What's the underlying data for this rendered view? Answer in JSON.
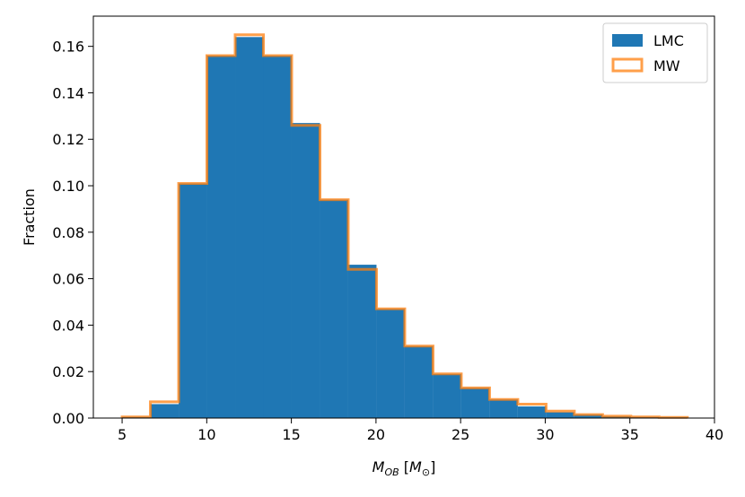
{
  "chart_data": {
    "type": "histogram",
    "xlabel": "M_OB [M_⊙]",
    "xlabel_parts": {
      "main": "M",
      "sub": "OB",
      "bracket_open": " [",
      "unit_main": "M",
      "unit_sub": "⊙",
      "bracket_close": "]"
    },
    "ylabel": "Fraction",
    "xlim": [
      3.3,
      40
    ],
    "ylim": [
      0,
      0.173
    ],
    "xticks": [
      5,
      10,
      15,
      20,
      25,
      30,
      35,
      40
    ],
    "yticks": [
      0.0,
      0.02,
      0.04,
      0.06,
      0.08,
      0.1,
      0.12,
      0.14,
      0.16
    ],
    "ytick_labels": [
      "0.00",
      "0.02",
      "0.04",
      "0.06",
      "0.08",
      "0.10",
      "0.12",
      "0.14",
      "0.16"
    ],
    "legend_position": "top-right",
    "bin_edges": [
      5.0,
      6.67,
      8.34,
      10.01,
      11.68,
      13.35,
      15.02,
      16.69,
      18.36,
      20.03,
      21.7,
      23.37,
      25.04,
      26.71,
      28.38,
      30.05,
      31.72,
      33.39,
      35.06,
      36.73,
      38.4
    ],
    "series": [
      {
        "name": "LMC",
        "style": "filled",
        "color": "#1f77b4",
        "values": [
          0.0005,
          0.006,
          0.101,
          0.156,
          0.164,
          0.156,
          0.127,
          0.094,
          0.066,
          0.047,
          0.031,
          0.019,
          0.013,
          0.008,
          0.005,
          0.0025,
          0.0015,
          0.0008,
          0.0005,
          0.0003
        ]
      },
      {
        "name": "MW",
        "style": "step-outline",
        "color": "#ff7f0e",
        "values": [
          0.0005,
          0.007,
          0.101,
          0.156,
          0.165,
          0.156,
          0.126,
          0.094,
          0.064,
          0.047,
          0.031,
          0.019,
          0.013,
          0.008,
          0.006,
          0.003,
          0.0015,
          0.0008,
          0.0005,
          0.0003
        ]
      }
    ]
  }
}
